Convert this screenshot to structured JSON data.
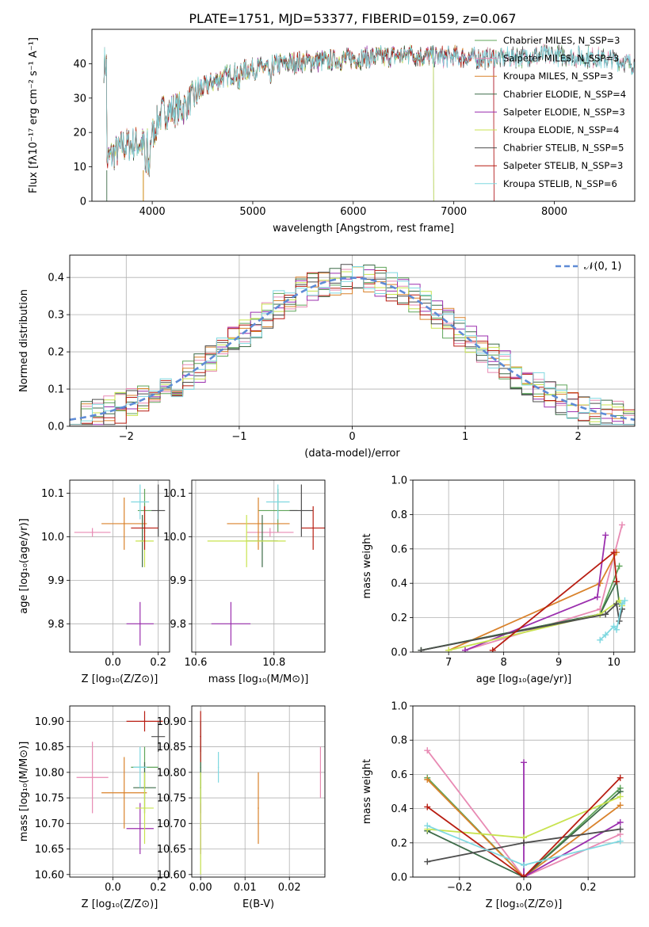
{
  "colors": {
    "chab_miles": "#5fa55a",
    "salp_miles": "#e88ab3",
    "krou_miles": "#d9822b",
    "chab_elodie": "#3d6b48",
    "salp_elodie": "#9b2fae",
    "krou_elodie": "#c8e34f",
    "chab_stelib": "#4d4d4d",
    "salp_stelib": "#b81d12",
    "krou_stelib": "#7fd8e0",
    "gauss": "#5e8bd6",
    "grid": "#b0b0b0"
  },
  "chart_data": [
    {
      "id": "spectrum",
      "type": "line",
      "title": "PLATE=1751, MJD=53377, FIBERID=0159, z=0.067",
      "xlabel": "wavelength [Angstrom, rest frame]",
      "ylabel": "Flux [fλ10⁻¹⁷ erg cm⁻² s⁻¹ A⁻¹]",
      "xlim": [
        3400,
        8800
      ],
      "ylim": [
        0,
        50
      ],
      "xticks": [
        "4000",
        "5000",
        "6000",
        "7000",
        "8000"
      ],
      "yticks": [
        "0",
        "10",
        "20",
        "30",
        "40"
      ],
      "grid": false,
      "legend_position": "top-right",
      "legend": [
        "Chabrier MILES, N_SSP=3",
        "Salpeter MILES, N_SSP=3",
        "Kroupa MILES, N_SSP=3",
        "Chabrier ELODIE, N_SSP=4",
        "Salpeter ELODIE, N_SSP=3",
        "Kroupa ELODIE, N_SSP=4",
        "Chabrier STELIB, N_SSP=5",
        "Salpeter STELIB, N_SSP=3",
        "Kroupa STELIB, N_SSP=6"
      ],
      "continuum": [
        [
          3550,
          12
        ],
        [
          3700,
          16
        ],
        [
          3850,
          17
        ],
        [
          3950,
          16
        ],
        [
          4100,
          26
        ],
        [
          4300,
          27
        ],
        [
          4500,
          33
        ],
        [
          4700,
          36
        ],
        [
          4900,
          38
        ],
        [
          5100,
          39
        ],
        [
          5300,
          40
        ],
        [
          5500,
          40.5
        ],
        [
          5800,
          41
        ],
        [
          6000,
          41.5
        ],
        [
          6300,
          42
        ],
        [
          6550,
          42.5
        ],
        [
          6800,
          42
        ],
        [
          7000,
          42
        ],
        [
          7300,
          41.5
        ],
        [
          7600,
          42
        ],
        [
          8000,
          42.5
        ],
        [
          8500,
          41.5
        ],
        [
          8800,
          40
        ]
      ],
      "coverage_end": [
        8800,
        8800,
        7400,
        6800,
        7400,
        6800,
        8800,
        7400,
        8800
      ]
    },
    {
      "id": "residuals",
      "type": "line",
      "xlabel": "(data-model)/error",
      "ylabel": "Normed distribution",
      "xlim": [
        -2.5,
        2.5
      ],
      "ylim": [
        0,
        0.46
      ],
      "xticks": [
        "−2",
        "−1",
        "0",
        "1",
        "2"
      ],
      "yticks": [
        "0.0",
        "0.1",
        "0.2",
        "0.3",
        "0.4"
      ],
      "grid": true,
      "legend_position": "top-right",
      "legend": [
        "𝒩(0, 1)"
      ],
      "gaussian": {
        "mean": 0,
        "sigma": 1
      }
    },
    {
      "id": "age-vs-Z",
      "type": "scatter",
      "xlabel": "Z [log₁₀(Z/Z⊙)]",
      "ylabel": "age  [log₁₀(age/yr)]",
      "xlim": [
        -0.19,
        0.25
      ],
      "ylim": [
        9.735,
        10.13
      ],
      "xticks": [
        "0.0",
        "0.2"
      ],
      "yticks": [
        "9.8",
        "9.9",
        "10.0",
        "10.1"
      ],
      "grid": true,
      "points": [
        {
          "x": 0.14,
          "xerr": 0.03,
          "y": 10.06,
          "yerr": 0.05
        },
        {
          "x": -0.09,
          "xerr": 0.08,
          "y": 10.01,
          "yerr": 0.01
        },
        {
          "x": 0.05,
          "xerr": 0.1,
          "y": 10.03,
          "yerr": 0.06
        },
        {
          "x": 0.13,
          "xerr": 0.01,
          "y": 9.99,
          "yerr": 0.06
        },
        {
          "x": 0.12,
          "xerr": 0.06,
          "y": 9.8,
          "yerr": 0.05
        },
        {
          "x": 0.14,
          "xerr": 0.04,
          "y": 9.99,
          "yerr": 0.06
        },
        {
          "x": 0.2,
          "xerr": 0.03,
          "y": 10.06,
          "yerr": 0.06
        },
        {
          "x": 0.14,
          "xerr": 0.06,
          "y": 10.02,
          "yerr": 0.05
        },
        {
          "x": 0.12,
          "xerr": 0.04,
          "y": 10.08,
          "yerr": 0.04
        }
      ]
    },
    {
      "id": "age-vs-mass",
      "type": "scatter",
      "xlabel": "mass [log₁₀(M/M⊙)]",
      "ylabel": "",
      "xlim": [
        10.59,
        10.93
      ],
      "ylim": [
        9.735,
        10.13
      ],
      "xticks": [
        "10.6",
        "10.8"
      ],
      "yticks": [
        "9.8",
        "9.9",
        "10.0",
        "10.1"
      ],
      "grid": true,
      "points": [
        {
          "x": 10.81,
          "xerr": 0.05,
          "y": 10.06,
          "yerr": 0.05
        },
        {
          "x": 10.79,
          "xerr": 0.06,
          "y": 10.01,
          "yerr": 0.01
        },
        {
          "x": 10.76,
          "xerr": 0.08,
          "y": 10.03,
          "yerr": 0.06
        },
        {
          "x": 10.77,
          "xerr": 0.04,
          "y": 9.99,
          "yerr": 0.06
        },
        {
          "x": 10.69,
          "xerr": 0.05,
          "y": 9.8,
          "yerr": 0.05
        },
        {
          "x": 10.73,
          "xerr": 0.1,
          "y": 9.99,
          "yerr": 0.06
        },
        {
          "x": 10.87,
          "xerr": 0.03,
          "y": 10.06,
          "yerr": 0.06
        },
        {
          "x": 10.9,
          "xerr": 0.03,
          "y": 10.02,
          "yerr": 0.05
        },
        {
          "x": 10.81,
          "xerr": 0.03,
          "y": 10.08,
          "yerr": 0.04
        }
      ]
    },
    {
      "id": "weight-vs-age",
      "type": "line",
      "xlabel": "age  [log₁₀(age/yr)]",
      "ylabel": "mass weight",
      "xlim": [
        6.35,
        10.38
      ],
      "ylim": [
        0,
        1
      ],
      "xticks": [
        "7",
        "8",
        "9",
        "10"
      ],
      "yticks": [
        "0.0",
        "0.2",
        "0.4",
        "0.6",
        "0.8",
        "1.0"
      ],
      "grid": true,
      "series": [
        {
          "x": [
            6.5,
            9.75,
            10.1
          ],
          "y": [
            0.01,
            0.22,
            0.5
          ]
        },
        {
          "x": [
            7.3,
            9.75,
            10.15
          ],
          "y": [
            0.01,
            0.25,
            0.74
          ]
        },
        {
          "x": [
            7.0,
            9.75,
            10.05
          ],
          "y": [
            0.01,
            0.4,
            0.58
          ]
        },
        {
          "x": [
            6.5,
            9.75,
            10.05,
            10.1
          ],
          "y": [
            0.01,
            0.22,
            0.41,
            0.28
          ]
        },
        {
          "x": [
            7.3,
            9.7,
            9.85
          ],
          "y": [
            0.01,
            0.32,
            0.68
          ]
        },
        {
          "x": [
            7.0,
            9.75,
            10.1,
            10.15
          ],
          "y": [
            0.01,
            0.22,
            0.3,
            0.27
          ]
        },
        {
          "x": [
            6.5,
            9.85,
            10.05,
            10.1,
            10.15
          ],
          "y": [
            0.01,
            0.22,
            0.28,
            0.18,
            0.25
          ]
        },
        {
          "x": [
            7.8,
            10.0,
            10.05
          ],
          "y": [
            0.01,
            0.58,
            0.41
          ]
        },
        {
          "x": [
            9.75,
            9.85,
            10.0,
            10.05,
            10.15,
            10.2
          ],
          "y": [
            0.07,
            0.1,
            0.15,
            0.13,
            0.28,
            0.3
          ]
        }
      ]
    },
    {
      "id": "mass-vs-Z",
      "type": "scatter",
      "xlabel": "Z [log₁₀(Z/Z⊙)]",
      "ylabel": "mass [log₁₀(M/M⊙)]",
      "xlim": [
        -0.19,
        0.25
      ],
      "ylim": [
        10.595,
        10.93
      ],
      "xticks": [
        "0.0",
        "0.2"
      ],
      "yticks": [
        "10.60",
        "10.65",
        "10.70",
        "10.75",
        "10.80",
        "10.85",
        "10.90"
      ],
      "grid": true,
      "points": [
        {
          "x": 0.14,
          "xerr": 0.06,
          "y": 10.81,
          "yerr": 0.04
        },
        {
          "x": -0.09,
          "xerr": 0.07,
          "y": 10.79,
          "yerr": 0.07
        },
        {
          "x": 0.05,
          "xerr": 0.1,
          "y": 10.76,
          "yerr": 0.07
        },
        {
          "x": 0.14,
          "xerr": 0.05,
          "y": 10.77,
          "yerr": 0.05
        },
        {
          "x": 0.12,
          "xerr": 0.06,
          "y": 10.69,
          "yerr": 0.05
        },
        {
          "x": 0.14,
          "xerr": 0.04,
          "y": 10.73,
          "yerr": 0.07
        },
        {
          "x": 0.2,
          "xerr": 0.03,
          "y": 10.87,
          "yerr": 0.03
        },
        {
          "x": 0.14,
          "xerr": 0.08,
          "y": 10.9,
          "yerr": 0.02
        },
        {
          "x": 0.12,
          "xerr": 0.03,
          "y": 10.81,
          "yerr": 0.04
        }
      ]
    },
    {
      "id": "mass-vs-EBV",
      "type": "scatter",
      "xlabel": "E(B-V)",
      "ylabel": "",
      "xlim": [
        -0.002,
        0.028
      ],
      "ylim": [
        10.595,
        10.93
      ],
      "xticks": [
        "0.00",
        "0.01",
        "0.02"
      ],
      "yticks": [
        "10.60",
        "10.65",
        "10.70",
        "10.75",
        "10.80",
        "10.85",
        "10.90"
      ],
      "grid": true,
      "points": [
        {
          "x": 0.0,
          "y": 10.81,
          "yerr": 0.04
        },
        {
          "x": 0.027,
          "y": 10.8,
          "yerr": 0.05
        },
        {
          "x": 0.013,
          "y": 10.73,
          "yerr": 0.07
        },
        {
          "x": 0.0,
          "y": 10.77,
          "yerr": 0.05
        },
        {
          "x": 0.0,
          "y": 10.69,
          "yerr": 0.05
        },
        {
          "x": 0.0,
          "y": 10.7,
          "yerr": 0.1
        },
        {
          "x": 0.0,
          "y": 10.87,
          "yerr": 0.03
        },
        {
          "x": 0.0,
          "y": 10.87,
          "yerr": 0.05
        },
        {
          "x": 0.004,
          "y": 10.81,
          "yerr": 0.03
        }
      ]
    },
    {
      "id": "weight-vs-Z",
      "type": "line",
      "xlabel": "Z [log₁₀(Z/Z⊙)]",
      "ylabel": "mass weight",
      "xlim": [
        -0.345,
        0.345
      ],
      "ylim": [
        0,
        1
      ],
      "xticks": [
        "−0.2",
        "0.0",
        "0.2"
      ],
      "yticks": [
        "0.0",
        "0.2",
        "0.4",
        "0.6",
        "0.8",
        "1.0"
      ],
      "grid": true,
      "series": [
        {
          "x": [
            -0.3,
            0.0,
            0.3
          ],
          "y": [
            0.58,
            0.0,
            0.52
          ]
        },
        {
          "x": [
            -0.3,
            0.0,
            0.3
          ],
          "y": [
            0.74,
            0.0,
            0.25
          ]
        },
        {
          "x": [
            -0.3,
            0.0,
            0.3
          ],
          "y": [
            0.57,
            0.0,
            0.42
          ]
        },
        {
          "x": [
            -0.3,
            0.0,
            0.3
          ],
          "y": [
            0.27,
            0.0,
            0.5
          ]
        },
        {
          "x": [
            0.0,
            0.0,
            0.3
          ],
          "y": [
            0.67,
            0.0,
            0.32
          ]
        },
        {
          "x": [
            -0.3,
            0.0,
            0.3
          ],
          "y": [
            0.28,
            0.23,
            0.47
          ]
        },
        {
          "x": [
            -0.3,
            0.0,
            0.3
          ],
          "y": [
            0.09,
            0.2,
            0.28
          ]
        },
        {
          "x": [
            -0.3,
            0.0,
            0.3
          ],
          "y": [
            0.41,
            0.0,
            0.58
          ]
        },
        {
          "x": [
            -0.3,
            0.0,
            0.3
          ],
          "y": [
            0.3,
            0.07,
            0.21
          ]
        }
      ]
    }
  ]
}
